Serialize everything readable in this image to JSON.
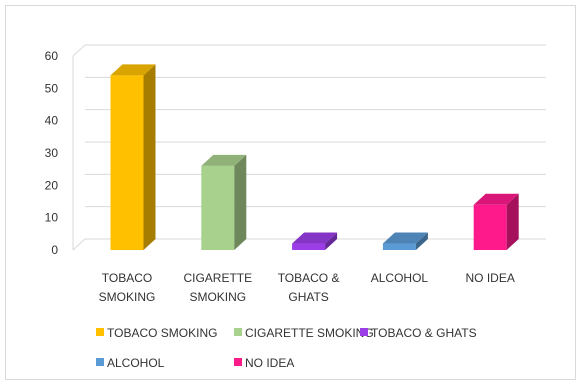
{
  "chart_data": {
    "type": "bar",
    "style": "3d-column",
    "categories": [
      [
        "TOBACO",
        "SMOKING"
      ],
      [
        "CIGARETTE",
        "SMOKING"
      ],
      [
        "TOBACO &",
        "GHATS"
      ],
      [
        "ALCOHOL"
      ],
      [
        "NO IDEA"
      ]
    ],
    "values": [
      54,
      26,
      2,
      2,
      14
    ],
    "colors": [
      "#ffc000",
      "#a9d18e",
      "#9b3ee8",
      "#5b9bd5",
      "#ff1a8c"
    ],
    "ylim": [
      0,
      60
    ],
    "yticks": [
      0,
      10,
      20,
      30,
      40,
      50,
      60
    ],
    "grid": true,
    "legend_position": "bottom",
    "legend": [
      "TOBACO SMOKING",
      "CIGARETTE SMOKING",
      "TOBACO & GHATS",
      "ALCOHOL",
      "NO IDEA"
    ]
  }
}
